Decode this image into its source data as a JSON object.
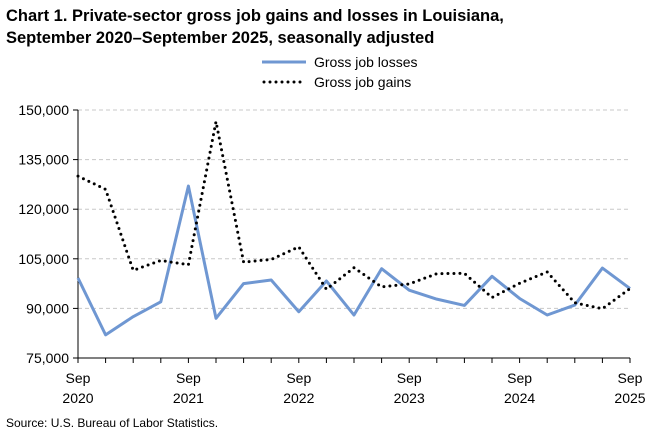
{
  "chart_data": {
    "type": "line",
    "title_line1": "Chart 1. Private-sector gross job gains and losses in Louisiana,",
    "title_line2": "September 2020–September 2025, seasonally adjusted",
    "source": "Source: U.S. Bureau of Labor Statistics.",
    "xlabel": "",
    "ylabel": "",
    "ylim": [
      75000,
      150000
    ],
    "yticks": [
      "150,000",
      "135,000",
      "120,000",
      "105,000",
      "90,000",
      "75,000"
    ],
    "ytick_values": [
      150000,
      135000,
      120000,
      105000,
      90000,
      75000
    ],
    "x": [
      "Sep 2020",
      "Dec 2020",
      "Mar 2021",
      "Jun 2021",
      "Sep 2021",
      "Dec 2021",
      "Mar 2022",
      "Jun 2022",
      "Sep 2022",
      "Dec 2022",
      "Mar 2023",
      "Jun 2023",
      "Sep 2023",
      "Dec 2023",
      "Mar 2024",
      "Jun 2024",
      "Sep 2024",
      "Dec 2024",
      "Mar 2025",
      "Jun 2025",
      "Sep 2025"
    ],
    "xtick_labels": [
      {
        "month": "Sep",
        "year": "2020",
        "index": 0
      },
      {
        "month": "Sep",
        "year": "2021",
        "index": 4
      },
      {
        "month": "Sep",
        "year": "2022",
        "index": 8
      },
      {
        "month": "Sep",
        "year": "2023",
        "index": 12
      },
      {
        "month": "Sep",
        "year": "2024",
        "index": 16
      },
      {
        "month": "Sep",
        "year": "2025",
        "index": 20
      }
    ],
    "grid": true,
    "legend_position": "top-center",
    "series": [
      {
        "name": "Gross job losses",
        "style": "solid",
        "color": "#6f97d2",
        "values": [
          99200,
          82000,
          87500,
          92000,
          127000,
          87000,
          97500,
          98600,
          89000,
          98300,
          88000,
          102000,
          95500,
          92800,
          90900,
          99700,
          93000,
          88000,
          91000,
          102200,
          96000
        ]
      },
      {
        "name": "Gross job gains",
        "style": "dotted",
        "color": "#000000",
        "values": [
          130000,
          126000,
          101500,
          104500,
          103200,
          146500,
          104000,
          104800,
          108600,
          95800,
          102300,
          96500,
          97400,
          100500,
          100600,
          93300,
          97600,
          101000,
          91700,
          89900,
          96000
        ]
      }
    ]
  }
}
